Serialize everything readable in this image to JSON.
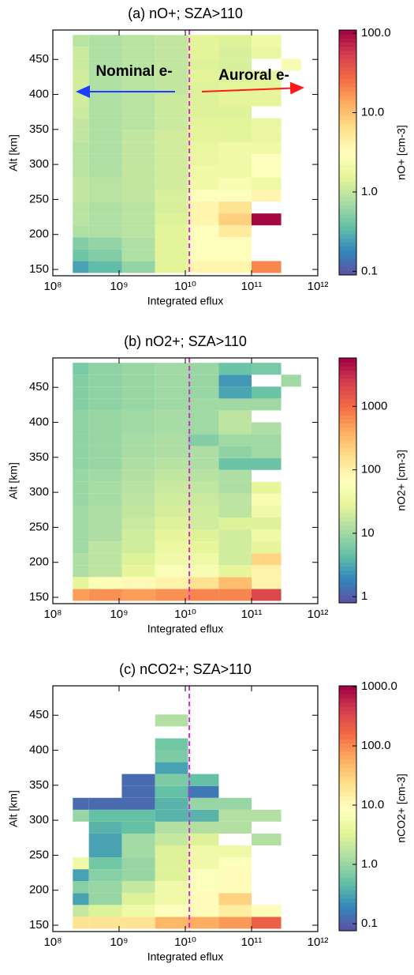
{
  "chart_data": [
    {
      "type": "heatmap",
      "title": "(a) nO+; SZA>110",
      "xlabel": "Integrated eflux",
      "ylabel": "Alt [km]",
      "colorbar_label": "nO+ [cm-3]",
      "xscale": "log",
      "xlim": [
        100000000,
        1000000000000
      ],
      "xticks": [
        {
          "value": 100000000,
          "label": "10⁸"
        },
        {
          "value": 1000000000,
          "label": "10⁹"
        },
        {
          "value": 10000000000,
          "label": "10¹⁰"
        },
        {
          "value": 100000000000,
          "label": "10¹¹"
        },
        {
          "value": 1000000000000,
          "label": "10¹²"
        }
      ],
      "ylim": [
        141,
        492
      ],
      "yticks": [
        150,
        200,
        250,
        300,
        350,
        400,
        450
      ],
      "xbins": [
        200000000,
        350000000,
        1100000000,
        3500000000,
        11000000000,
        32000000000,
        100000000000,
        280000000000,
        560000000000
      ],
      "ybins": [
        145,
        162,
        179,
        196,
        213,
        230,
        247,
        264,
        281,
        298,
        315,
        332,
        349,
        366,
        383,
        400,
        417,
        434,
        451,
        468,
        485
      ],
      "clim": [
        0.09,
        110
      ],
      "cticks": [
        {
          "value": 0.1,
          "label": "0.1"
        },
        {
          "value": 1,
          "label": "1.0"
        },
        {
          "value": 10,
          "label": "10.0"
        },
        {
          "value": 100,
          "label": "100.0"
        }
      ],
      "colormap": [
        "#5e4fa2",
        "#3288bd",
        "#66c2a5",
        "#abdda4",
        "#e6f598",
        "#ffffbf",
        "#fee08b",
        "#fdae61",
        "#f46d43",
        "#d53e4f",
        "#9e0142"
      ],
      "vline": {
        "value": 11500000000,
        "color": "#e020e0"
      },
      "annotations": [
        {
          "text": "Nominal e-",
          "color": "#1f3dff"
        },
        {
          "text": "Auroral e-",
          "color": "#ff1a1a"
        }
      ],
      "z": [
        [
          0.25,
          0.35,
          0.6,
          1.5,
          4,
          4,
          20,
          null
        ],
        [
          0.4,
          0.5,
          0.8,
          1.5,
          3,
          3,
          null,
          null
        ],
        [
          0.5,
          0.6,
          0.8,
          1.5,
          3,
          3,
          null,
          null
        ],
        [
          0.8,
          0.8,
          0.9,
          1.5,
          3,
          5,
          null,
          null
        ],
        [
          0.9,
          0.8,
          0.9,
          1.4,
          4,
          8,
          100,
          null
        ],
        [
          0.9,
          0.8,
          0.9,
          1.3,
          4,
          6,
          null,
          null
        ],
        [
          1,
          0.9,
          1,
          1.3,
          3,
          3,
          4,
          null
        ],
        [
          1,
          0.9,
          1,
          1.2,
          2,
          2.5,
          2,
          null
        ],
        [
          0.9,
          0.8,
          1,
          1.2,
          2,
          2,
          3,
          null
        ],
        [
          0.9,
          0.8,
          1,
          1.2,
          1.8,
          2,
          3,
          null
        ],
        [
          0.9,
          0.8,
          1,
          1.2,
          1.8,
          2,
          2,
          null
        ],
        [
          1,
          0.8,
          1,
          1.2,
          1.6,
          1.5,
          1.8,
          null
        ],
        [
          1,
          0.8,
          0.9,
          1.1,
          1.5,
          1.5,
          1.8,
          null
        ],
        [
          1.1,
          0.8,
          0.9,
          1.1,
          1.4,
          1.4,
          null,
          null
        ],
        [
          1.2,
          0.8,
          0.9,
          1.1,
          1.4,
          1.6,
          1.6,
          null
        ],
        [
          1.2,
          0.8,
          0.9,
          1,
          1.4,
          1.6,
          1.6,
          null
        ],
        [
          1.2,
          0.8,
          0.9,
          1,
          1.5,
          1.4,
          1.5,
          null
        ],
        [
          1.1,
          0.8,
          0.9,
          1,
          1.4,
          1.3,
          null,
          2.5
        ],
        [
          1.1,
          0.8,
          0.9,
          1,
          1.5,
          1.3,
          1.8,
          null
        ],
        [
          0.9,
          0.8,
          0.9,
          1,
          1.5,
          1.4,
          2,
          null
        ]
      ]
    },
    {
      "type": "heatmap",
      "title": "(b) nO2+; SZA>110",
      "xlabel": "Integrated eflux",
      "ylabel": "Alt [km]",
      "colorbar_label": "nO2+ [cm-3]",
      "xscale": "log",
      "xlim": [
        100000000,
        1000000000000
      ],
      "xticks": [
        {
          "value": 100000000,
          "label": "10⁸"
        },
        {
          "value": 1000000000,
          "label": "10⁹"
        },
        {
          "value": 10000000000,
          "label": "10¹⁰"
        },
        {
          "value": 100000000000,
          "label": "10¹¹"
        },
        {
          "value": 1000000000000,
          "label": "10¹²"
        }
      ],
      "ylim": [
        141,
        492
      ],
      "yticks": [
        150,
        200,
        250,
        300,
        350,
        400,
        450
      ],
      "xbins": [
        200000000,
        350000000,
        1100000000,
        3500000000,
        11000000000,
        32000000000,
        100000000000,
        280000000000,
        560000000000
      ],
      "ybins": [
        145,
        162,
        179,
        196,
        213,
        230,
        247,
        264,
        281,
        298,
        315,
        332,
        349,
        366,
        383,
        400,
        417,
        434,
        451,
        468,
        485
      ],
      "clim": [
        0.8,
        5800
      ],
      "cticks": [
        1,
        10,
        100,
        1000
      ],
      "colormap": [
        "#5e4fa2",
        "#3288bd",
        "#66c2a5",
        "#abdda4",
        "#e6f598",
        "#ffffbf",
        "#fee08b",
        "#fdae61",
        "#f46d43",
        "#d53e4f",
        "#9e0142"
      ],
      "vline": {
        "value": 11500000000,
        "color": "#e020e0"
      },
      "z": [
        [
          500,
          600,
          500,
          600,
          700,
          700,
          2000,
          null
        ],
        [
          30,
          60,
          80,
          100,
          150,
          300,
          100,
          null
        ],
        [
          12,
          15,
          30,
          60,
          50,
          30,
          100,
          null
        ],
        [
          12,
          15,
          25,
          40,
          40,
          20,
          200,
          null
        ],
        [
          10,
          15,
          20,
          35,
          30,
          20,
          30,
          null
        ],
        [
          10,
          12,
          20,
          30,
          25,
          20,
          40,
          null
        ],
        [
          10,
          12,
          18,
          25,
          20,
          25,
          25,
          null
        ],
        [
          10,
          12,
          16,
          22,
          20,
          15,
          40,
          null
        ],
        [
          9,
          11,
          15,
          20,
          18,
          15,
          50,
          null
        ],
        [
          9,
          11,
          14,
          18,
          16,
          12,
          30,
          null
        ],
        [
          9,
          10,
          13,
          16,
          14,
          12,
          null,
          null
        ],
        [
          8,
          9,
          12,
          14,
          12,
          5,
          5,
          null
        ],
        [
          8,
          9,
          11,
          12,
          12,
          8,
          10,
          null
        ],
        [
          8,
          9,
          11,
          12,
          7,
          10,
          10,
          null
        ],
        [
          8,
          9,
          10,
          11,
          10,
          15,
          12,
          null
        ],
        [
          8,
          9,
          10,
          11,
          10,
          15,
          null,
          null
        ],
        [
          7,
          8,
          9,
          10,
          10,
          10,
          10,
          null
        ],
        [
          7,
          8,
          9,
          10,
          9,
          3,
          5,
          null
        ],
        [
          7,
          8,
          9,
          10,
          9,
          2.5,
          null,
          10
        ],
        [
          6,
          8,
          9,
          10,
          9,
          5,
          6,
          null
        ]
      ]
    },
    {
      "type": "heatmap",
      "title": "(c) nCO2+; SZA>110",
      "xlabel": "Integrated eflux",
      "ylabel": "Alt [km]",
      "colorbar_label": "nCO2+ [cm-3]",
      "xscale": "log",
      "xlim": [
        100000000,
        1000000000000
      ],
      "xticks": [
        {
          "value": 100000000,
          "label": "10⁸"
        },
        {
          "value": 1000000000,
          "label": "10⁹"
        },
        {
          "value": 10000000000,
          "label": "10¹⁰"
        },
        {
          "value": 100000000000,
          "label": "10¹¹"
        },
        {
          "value": 1000000000000,
          "label": "10¹²"
        }
      ],
      "ylim": [
        141,
        492
      ],
      "yticks": [
        150,
        200,
        250,
        300,
        350,
        400,
        450
      ],
      "xbins": [
        200000000,
        350000000,
        1100000000,
        3500000000,
        11000000000,
        32000000000,
        100000000000,
        280000000000,
        560000000000
      ],
      "ybins": [
        145,
        162,
        179,
        196,
        213,
        230,
        247,
        264,
        281,
        298,
        315,
        332,
        349,
        366,
        383,
        400,
        417,
        434,
        451,
        468,
        485
      ],
      "clim": [
        0.076,
        1030
      ],
      "cticks": [
        {
          "value": 0.1,
          "label": "0.1"
        },
        {
          "value": 1,
          "label": "1.0"
        },
        {
          "value": 10,
          "label": "10.0"
        },
        {
          "value": 100,
          "label": "100.0"
        },
        {
          "value": 1000,
          "label": "1000.0"
        }
      ],
      "colormap": [
        "#5e4fa2",
        "#3288bd",
        "#66c2a5",
        "#abdda4",
        "#e6f598",
        "#ffffbf",
        "#fee08b",
        "#fdae61",
        "#f46d43",
        "#d53e4f",
        "#9e0142"
      ],
      "vline": {
        "value": 11500000000,
        "color": "#e020e0"
      },
      "z": [
        [
          20,
          20,
          20,
          50,
          60,
          80,
          200,
          null
        ],
        [
          2,
          3,
          5,
          8,
          10,
          15,
          10,
          null
        ],
        [
          0.3,
          1,
          3,
          5,
          10,
          30,
          null,
          null
        ],
        [
          0.8,
          1,
          2,
          5,
          8,
          10,
          null,
          null
        ],
        [
          0.3,
          0.8,
          1,
          3,
          8,
          10,
          null,
          null
        ],
        [
          5,
          0.6,
          1,
          3,
          5,
          8,
          null,
          null
        ],
        [
          null,
          0.3,
          1.2,
          3,
          5,
          5,
          null,
          null
        ],
        [
          null,
          0.3,
          1.2,
          2,
          3,
          null,
          1.5,
          null
        ],
        [
          null,
          0.4,
          0.5,
          1.5,
          1.5,
          1.5,
          null,
          null
        ],
        [
          1,
          0.5,
          0.5,
          0.4,
          0.4,
          1.5,
          1.5,
          null
        ],
        [
          0.12,
          0.12,
          0.12,
          0.4,
          1,
          1,
          null,
          null
        ],
        [
          null,
          null,
          0.12,
          0.5,
          0.15,
          null,
          null,
          null
        ],
        [
          null,
          null,
          0.12,
          0.7,
          0.5,
          null,
          null,
          null
        ],
        [
          null,
          null,
          null,
          0.3,
          null,
          null,
          null,
          null
        ],
        [
          null,
          null,
          null,
          0.7,
          null,
          null,
          null,
          null
        ],
        [
          null,
          null,
          null,
          0.6,
          null,
          null,
          null,
          null
        ],
        [
          null,
          null,
          null,
          null,
          null,
          null,
          null,
          null
        ],
        [
          null,
          null,
          null,
          1.5,
          null,
          null,
          null,
          null
        ],
        [
          null,
          null,
          null,
          null,
          null,
          null,
          null,
          null
        ],
        [
          null,
          null,
          null,
          null,
          null,
          null,
          null,
          null
        ]
      ]
    }
  ]
}
